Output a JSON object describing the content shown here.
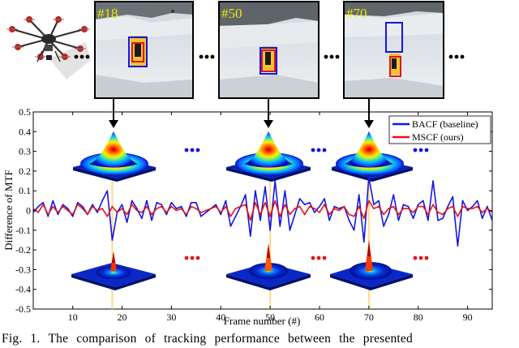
{
  "figure": {
    "frames": [
      {
        "label": "#18",
        "frame": 18
      },
      {
        "label": "#50",
        "frame": 50
      },
      {
        "label": "#70",
        "frame": 70
      }
    ],
    "ellipsis": "...",
    "colors": {
      "baseline": "#1414e6",
      "ours": "#e61414",
      "frame_label": "#f2e600",
      "marker_line": "#ffd27a"
    }
  },
  "chart_data": {
    "type": "line",
    "title": "",
    "xlabel": "Frame number (#)",
    "ylabel": "Difference of MTF",
    "xlim": [
      2,
      95
    ],
    "ylim": [
      -0.5,
      0.5
    ],
    "xticks": [
      10,
      20,
      30,
      40,
      50,
      60,
      70,
      80,
      90
    ],
    "yticks": [
      -0.5,
      -0.4,
      -0.3,
      -0.2,
      -0.1,
      0,
      0.1,
      0.2,
      0.3,
      0.4,
      0.5
    ],
    "legend_position": "top-right",
    "series": [
      {
        "name": "BACF (baseline)",
        "color": "#1414e6",
        "x": [
          2,
          3,
          4,
          5,
          6,
          7,
          8,
          9,
          10,
          11,
          12,
          13,
          14,
          15,
          16,
          17,
          18,
          19,
          20,
          21,
          22,
          23,
          24,
          25,
          26,
          27,
          28,
          29,
          30,
          31,
          32,
          33,
          34,
          35,
          36,
          37,
          38,
          39,
          40,
          41,
          42,
          43,
          44,
          45,
          46,
          47,
          48,
          49,
          50,
          51,
          52,
          53,
          54,
          55,
          56,
          57,
          58,
          59,
          60,
          61,
          62,
          63,
          64,
          65,
          66,
          67,
          68,
          69,
          70,
          71,
          72,
          73,
          74,
          75,
          76,
          77,
          78,
          79,
          80,
          81,
          82,
          83,
          84,
          85,
          86,
          87,
          88,
          89,
          90,
          91,
          92,
          93,
          94,
          95
        ],
        "values": [
          -0.01,
          0.02,
          0.04,
          -0.03,
          0.05,
          -0.02,
          0.03,
          0.01,
          -0.03,
          0.04,
          0.02,
          -0.02,
          0.03,
          -0.01,
          0.05,
          0.1,
          -0.15,
          -0.01,
          0.03,
          -0.06,
          0.05,
          0.01,
          -0.04,
          0.05,
          -0.05,
          0.04,
          0.03,
          -0.02,
          0.04,
          0.01,
          0.02,
          -0.03,
          0.04,
          0.04,
          -0.03,
          -0.01,
          0.01,
          0.03,
          -0.02,
          0.05,
          -0.08,
          -0.03,
          0.02,
          0.08,
          -0.13,
          0.1,
          -0.05,
          0.12,
          -0.1,
          0.15,
          -0.08,
          0.1,
          -0.1,
          -0.02,
          0.06,
          0.03,
          0.04,
          -0.01,
          0.02,
          0.06,
          -0.05,
          0.02,
          0.01,
          0.02,
          -0.05,
          -0.1,
          0.08,
          -0.16,
          0.17,
          0.03,
          0.05,
          -0.08,
          -0.02,
          0.08,
          -0.05,
          0.03,
          0.02,
          -0.04,
          0.03,
          0.05,
          -0.05,
          0.15,
          -0.05,
          -0.04,
          0.02,
          0.07,
          -0.18,
          0.05,
          0.0,
          0.02,
          0.05,
          -0.04,
          0.02,
          -0.05
        ]
      },
      {
        "name": "MSCF (ours)",
        "color": "#e61414",
        "x": [
          2,
          3,
          4,
          5,
          6,
          7,
          8,
          9,
          10,
          11,
          12,
          13,
          14,
          15,
          16,
          17,
          18,
          19,
          20,
          21,
          22,
          23,
          24,
          25,
          26,
          27,
          28,
          29,
          30,
          31,
          32,
          33,
          34,
          35,
          36,
          37,
          38,
          39,
          40,
          41,
          42,
          43,
          44,
          45,
          46,
          47,
          48,
          49,
          50,
          51,
          52,
          53,
          54,
          55,
          56,
          57,
          58,
          59,
          60,
          61,
          62,
          63,
          64,
          65,
          66,
          67,
          68,
          69,
          70,
          71,
          72,
          73,
          74,
          75,
          76,
          77,
          78,
          79,
          80,
          81,
          82,
          83,
          84,
          85,
          86,
          87,
          88,
          89,
          90,
          91,
          92,
          93,
          94,
          95
        ],
        "values": [
          0.01,
          -0.01,
          0.03,
          -0.02,
          0.02,
          -0.01,
          0.02,
          0.0,
          -0.02,
          0.03,
          0.01,
          -0.02,
          0.02,
          0.0,
          0.01,
          -0.03,
          0.02,
          -0.01,
          0.01,
          -0.02,
          0.03,
          0.0,
          -0.01,
          0.02,
          -0.02,
          0.01,
          0.02,
          -0.01,
          0.02,
          0.0,
          0.01,
          -0.02,
          0.02,
          0.01,
          -0.01,
          0.0,
          0.01,
          0.02,
          -0.01,
          0.02,
          -0.03,
          0.01,
          0.02,
          0.03,
          -0.05,
          0.04,
          -0.02,
          0.04,
          -0.03,
          0.05,
          -0.03,
          0.03,
          -0.02,
          0.01,
          0.02,
          -0.02,
          0.02,
          0.01,
          -0.01,
          0.03,
          -0.02,
          0.01,
          0.0,
          0.02,
          -0.02,
          -0.03,
          0.02,
          -0.04,
          0.05,
          0.01,
          0.02,
          -0.02,
          0.01,
          0.02,
          -0.02,
          0.01,
          0.01,
          -0.01,
          0.02,
          0.02,
          -0.02,
          0.03,
          -0.01,
          -0.02,
          0.01,
          0.02,
          -0.03,
          0.02,
          0.01,
          0.01,
          0.02,
          -0.01,
          0.01,
          -0.01
        ]
      }
    ]
  },
  "caption": {
    "label": "Fig. 1.",
    "text": "The comparison of tracking performance between the presented"
  }
}
